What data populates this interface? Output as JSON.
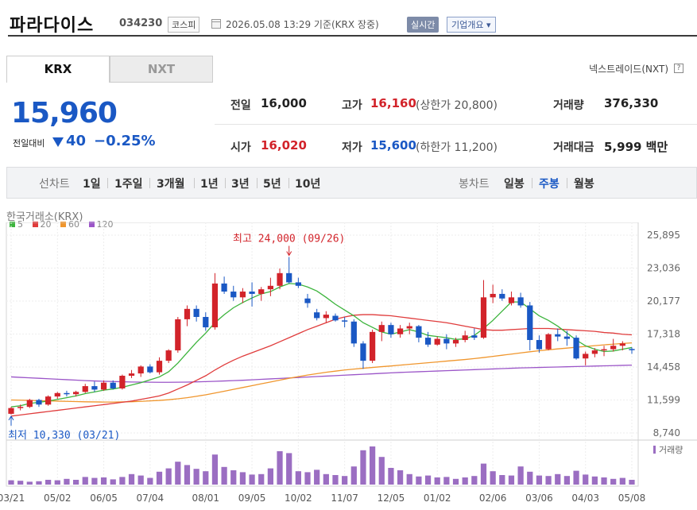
{
  "header": {
    "stock_name": "파라다이스",
    "stock_code": "034230",
    "market": "코스피",
    "base_time": "2026.05.08 13:29  기준(KRX 장중)",
    "realtime_label": "실시간",
    "company_label": "기업개요 ▾"
  },
  "tabs": [
    {
      "label": "KRX"
    },
    {
      "label": "NXT"
    }
  ],
  "nextrade_label": "넥스트레이드(NXT)",
  "help_icon": "?",
  "price": {
    "current": "15,960",
    "change_label": "전일대비",
    "change_abs": "40",
    "change_pct": "−0.25%",
    "direction": "down"
  },
  "stats": {
    "prev_close": {
      "label": "전일",
      "value": "16,000"
    },
    "high": {
      "label": "고가",
      "value": "16,160",
      "sub": "(상한가 20,800)"
    },
    "volume": {
      "label": "거래량",
      "value": "376,330"
    },
    "open": {
      "label": "시가",
      "value": "16,020"
    },
    "low": {
      "label": "저가",
      "value": "15,600",
      "sub": "(하한가 11,200)"
    },
    "amount": {
      "label": "거래대금",
      "value": "5,999 백만"
    }
  },
  "periods": {
    "line_label": "선차트",
    "line_items": [
      "1일",
      "1주일",
      "3개월",
      "1년",
      "3년",
      "5년",
      "10년"
    ],
    "candle_label": "봉차트",
    "candle_items": [
      "일봉",
      "주봉",
      "월봉"
    ],
    "active_candle": "주봉"
  },
  "chart_title": "한국거래소(KRX)",
  "legend": [
    {
      "label": "5",
      "color": "#3cb43c"
    },
    {
      "label": "20",
      "color": "#e03c3c"
    },
    {
      "label": "60",
      "color": "#f0962d"
    },
    {
      "label": "120",
      "color": "#9b55c8"
    }
  ],
  "chart_data": {
    "type": "candlestick",
    "y_ticks": [
      "25,895",
      "23,036",
      "20,177",
      "17,318",
      "14,458",
      "11,599",
      "8,740"
    ],
    "ylim": [
      8740,
      25895
    ],
    "x_ticks": [
      "03/21",
      "05/02",
      "06/05",
      "07/04",
      "08/01",
      "09/05",
      "10/02",
      "11/07",
      "12/05",
      "01/02",
      "02/06",
      "03/06",
      "04/03",
      "05/08"
    ],
    "annotations": {
      "high": "최고 24,000 (09/26)",
      "low": "최저 10,330 (03/21)"
    },
    "volume_label": "거래량",
    "colors": {
      "up": "#d2232a",
      "down": "#1a58c4",
      "volume": "#9b6ec2",
      "ma5": "#3cb43c",
      "ma20": "#e03c3c",
      "ma60": "#f0962d",
      "ma120": "#9b55c8"
    },
    "candles": [
      {
        "o": 10400,
        "h": 11000,
        "l": 10330,
        "c": 10900
      },
      {
        "o": 10900,
        "h": 11200,
        "l": 10700,
        "c": 11000
      },
      {
        "o": 11000,
        "h": 11700,
        "l": 10900,
        "c": 11600
      },
      {
        "o": 11600,
        "h": 11700,
        "l": 11000,
        "c": 11200
      },
      {
        "o": 11200,
        "h": 12000,
        "l": 11100,
        "c": 11900
      },
      {
        "o": 11900,
        "h": 12300,
        "l": 11700,
        "c": 12200
      },
      {
        "o": 12200,
        "h": 12400,
        "l": 11900,
        "c": 12100
      },
      {
        "o": 12100,
        "h": 12400,
        "l": 11900,
        "c": 12300
      },
      {
        "o": 12300,
        "h": 13000,
        "l": 12200,
        "c": 12800
      },
      {
        "o": 12800,
        "h": 13200,
        "l": 12300,
        "c": 12500
      },
      {
        "o": 12500,
        "h": 13300,
        "l": 12400,
        "c": 13100
      },
      {
        "o": 13100,
        "h": 13300,
        "l": 12500,
        "c": 12600
      },
      {
        "o": 12600,
        "h": 13800,
        "l": 12500,
        "c": 13700
      },
      {
        "o": 13700,
        "h": 14200,
        "l": 13500,
        "c": 13900
      },
      {
        "o": 13900,
        "h": 14600,
        "l": 13600,
        "c": 14500
      },
      {
        "o": 14500,
        "h": 14700,
        "l": 13900,
        "c": 14000
      },
      {
        "o": 14000,
        "h": 15300,
        "l": 13800,
        "c": 15000
      },
      {
        "o": 15000,
        "h": 16000,
        "l": 14800,
        "c": 15900
      },
      {
        "o": 15900,
        "h": 18800,
        "l": 15700,
        "c": 18600
      },
      {
        "o": 18600,
        "h": 19800,
        "l": 18000,
        "c": 19500
      },
      {
        "o": 19500,
        "h": 19800,
        "l": 18400,
        "c": 18800
      },
      {
        "o": 18800,
        "h": 19200,
        "l": 17600,
        "c": 17900
      },
      {
        "o": 17900,
        "h": 22600,
        "l": 17700,
        "c": 21700
      },
      {
        "o": 21700,
        "h": 22300,
        "l": 20800,
        "c": 21000
      },
      {
        "o": 21000,
        "h": 21500,
        "l": 20200,
        "c": 20500
      },
      {
        "o": 20500,
        "h": 21300,
        "l": 20000,
        "c": 21000
      },
      {
        "o": 21000,
        "h": 21800,
        "l": 19700,
        "c": 20800
      },
      {
        "o": 20800,
        "h": 21400,
        "l": 20200,
        "c": 21200
      },
      {
        "o": 21200,
        "h": 22200,
        "l": 20600,
        "c": 21500
      },
      {
        "o": 21500,
        "h": 23000,
        "l": 21200,
        "c": 22600
      },
      {
        "o": 22600,
        "h": 24000,
        "l": 21700,
        "c": 21800
      },
      {
        "o": 21800,
        "h": 22200,
        "l": 21300,
        "c": 21500
      },
      {
        "o": 20400,
        "h": 20800,
        "l": 19600,
        "c": 20000
      },
      {
        "o": 19200,
        "h": 19500,
        "l": 18500,
        "c": 18700
      },
      {
        "o": 18700,
        "h": 19300,
        "l": 18300,
        "c": 19000
      },
      {
        "o": 18900,
        "h": 19100,
        "l": 18400,
        "c": 18500
      },
      {
        "o": 18500,
        "h": 18800,
        "l": 17900,
        "c": 18400
      },
      {
        "o": 18400,
        "h": 18600,
        "l": 16200,
        "c": 16500
      },
      {
        "o": 16500,
        "h": 16700,
        "l": 14300,
        "c": 15000
      },
      {
        "o": 15000,
        "h": 17700,
        "l": 14800,
        "c": 17500
      },
      {
        "o": 17500,
        "h": 18400,
        "l": 16700,
        "c": 18100
      },
      {
        "o": 18100,
        "h": 18300,
        "l": 17000,
        "c": 17300
      },
      {
        "o": 17300,
        "h": 18100,
        "l": 17000,
        "c": 17800
      },
      {
        "o": 17800,
        "h": 18300,
        "l": 17300,
        "c": 18000
      },
      {
        "o": 18000,
        "h": 18100,
        "l": 16600,
        "c": 17000
      },
      {
        "o": 17000,
        "h": 17500,
        "l": 16200,
        "c": 16400
      },
      {
        "o": 16400,
        "h": 17100,
        "l": 16300,
        "c": 16900
      },
      {
        "o": 16900,
        "h": 17300,
        "l": 16000,
        "c": 16500
      },
      {
        "o": 16500,
        "h": 17000,
        "l": 16200,
        "c": 16800
      },
      {
        "o": 16800,
        "h": 17600,
        "l": 16600,
        "c": 17200
      },
      {
        "o": 17200,
        "h": 17800,
        "l": 16800,
        "c": 17000
      },
      {
        "o": 17000,
        "h": 22000,
        "l": 16900,
        "c": 20500
      },
      {
        "o": 20500,
        "h": 21600,
        "l": 20000,
        "c": 20800
      },
      {
        "o": 20800,
        "h": 21200,
        "l": 20200,
        "c": 20400
      },
      {
        "o": 20000,
        "h": 21000,
        "l": 19800,
        "c": 20500
      },
      {
        "o": 20500,
        "h": 20900,
        "l": 19600,
        "c": 19800
      },
      {
        "o": 19800,
        "h": 20100,
        "l": 15900,
        "c": 16800
      },
      {
        "o": 16800,
        "h": 17200,
        "l": 15700,
        "c": 16000
      },
      {
        "o": 16000,
        "h": 17400,
        "l": 15900,
        "c": 17300
      },
      {
        "o": 17300,
        "h": 17800,
        "l": 16700,
        "c": 17100
      },
      {
        "o": 17100,
        "h": 17600,
        "l": 16300,
        "c": 16900
      },
      {
        "o": 17000,
        "h": 17200,
        "l": 15100,
        "c": 15200
      },
      {
        "o": 15200,
        "h": 15800,
        "l": 14600,
        "c": 15600
      },
      {
        "o": 15600,
        "h": 16100,
        "l": 15300,
        "c": 15900
      },
      {
        "o": 15900,
        "h": 16300,
        "l": 15400,
        "c": 16000
      },
      {
        "o": 16000,
        "h": 16900,
        "l": 15800,
        "c": 16300
      },
      {
        "o": 16300,
        "h": 16700,
        "l": 15900,
        "c": 16500
      },
      {
        "o": 16020,
        "h": 16160,
        "l": 15600,
        "c": 15960
      }
    ],
    "ma5": [
      11000,
      11100,
      11300,
      11400,
      11500,
      11650,
      11800,
      11950,
      12150,
      12300,
      12450,
      12550,
      12700,
      12900,
      13100,
      13350,
      13600,
      14050,
      14800,
      15700,
      16600,
      17400,
      18300,
      19000,
      19600,
      20050,
      20450,
      20800,
      21000,
      21400,
      21700,
      21650,
      21400,
      21050,
      20500,
      19900,
      19400,
      18900,
      18300,
      17900,
      17500,
      17300,
      17500,
      17700,
      17500,
      17200,
      17100,
      17000,
      16850,
      16900,
      17200,
      17800,
      18500,
      19300,
      20100,
      20100,
      19500,
      18900,
      18500,
      18000,
      17400,
      16800,
      16300,
      16000,
      15800,
      15850,
      16000,
      16150
    ],
    "ma20": [
      10200,
      10300,
      10400,
      10500,
      10600,
      10700,
      10800,
      10900,
      11000,
      11100,
      11200,
      11300,
      11400,
      11500,
      11650,
      11800,
      11950,
      12200,
      12550,
      12900,
      13300,
      13700,
      14200,
      14650,
      15050,
      15400,
      15700,
      16000,
      16300,
      16650,
      17000,
      17350,
      17700,
      18000,
      18300,
      18600,
      18800,
      18950,
      19000,
      19000,
      18950,
      18900,
      18800,
      18700,
      18600,
      18500,
      18400,
      18300,
      18150,
      18000,
      17850,
      17700,
      17650,
      17650,
      17700,
      17750,
      17800,
      17800,
      17800,
      17750,
      17700,
      17650,
      17600,
      17550,
      17450,
      17400,
      17300,
      17250
    ],
    "ma60": [
      11600,
      11580,
      11560,
      11540,
      11520,
      11500,
      11480,
      11460,
      11440,
      11430,
      11420,
      11420,
      11430,
      11450,
      11480,
      11520,
      11560,
      11620,
      11700,
      11800,
      11920,
      12050,
      12200,
      12360,
      12520,
      12680,
      12840,
      13000,
      13160,
      13320,
      13480,
      13620,
      13760,
      13880,
      14000,
      14100,
      14200,
      14280,
      14350,
      14420,
      14490,
      14550,
      14620,
      14690,
      14760,
      14830,
      14900,
      14970,
      15040,
      15110,
      15190,
      15280,
      15380,
      15480,
      15580,
      15680,
      15780,
      15870,
      15950,
      16030,
      16100,
      16170,
      16240,
      16310,
      16380,
      16440,
      16500,
      16550
    ],
    "ma120": [
      13600,
      13560,
      13520,
      13480,
      13440,
      13400,
      13360,
      13320,
      13280,
      13250,
      13220,
      13200,
      13180,
      13160,
      13150,
      13140,
      13130,
      13130,
      13140,
      13150,
      13170,
      13190,
      13220,
      13250,
      13280,
      13310,
      13350,
      13390,
      13430,
      13470,
      13510,
      13550,
      13590,
      13630,
      13670,
      13710,
      13750,
      13790,
      13830,
      13870,
      13910,
      13950,
      13990,
      14020,
      14050,
      14080,
      14110,
      14140,
      14170,
      14200,
      14230,
      14260,
      14290,
      14320,
      14350,
      14380,
      14400,
      14420,
      14440,
      14460,
      14480,
      14500,
      14520,
      14540,
      14560,
      14580,
      14600,
      14620
    ],
    "volume": [
      9,
      8,
      6,
      7,
      10,
      9,
      12,
      10,
      16,
      14,
      15,
      11,
      16,
      22,
      19,
      14,
      27,
      34,
      48,
      41,
      33,
      28,
      63,
      37,
      30,
      26,
      21,
      22,
      34,
      70,
      66,
      28,
      26,
      31,
      22,
      20,
      18,
      38,
      72,
      80,
      58,
      35,
      30,
      22,
      17,
      19,
      15,
      16,
      12,
      15,
      18,
      44,
      28,
      20,
      19,
      38,
      27,
      19,
      18,
      22,
      18,
      29,
      21,
      17,
      15,
      12,
      14,
      10
    ]
  }
}
